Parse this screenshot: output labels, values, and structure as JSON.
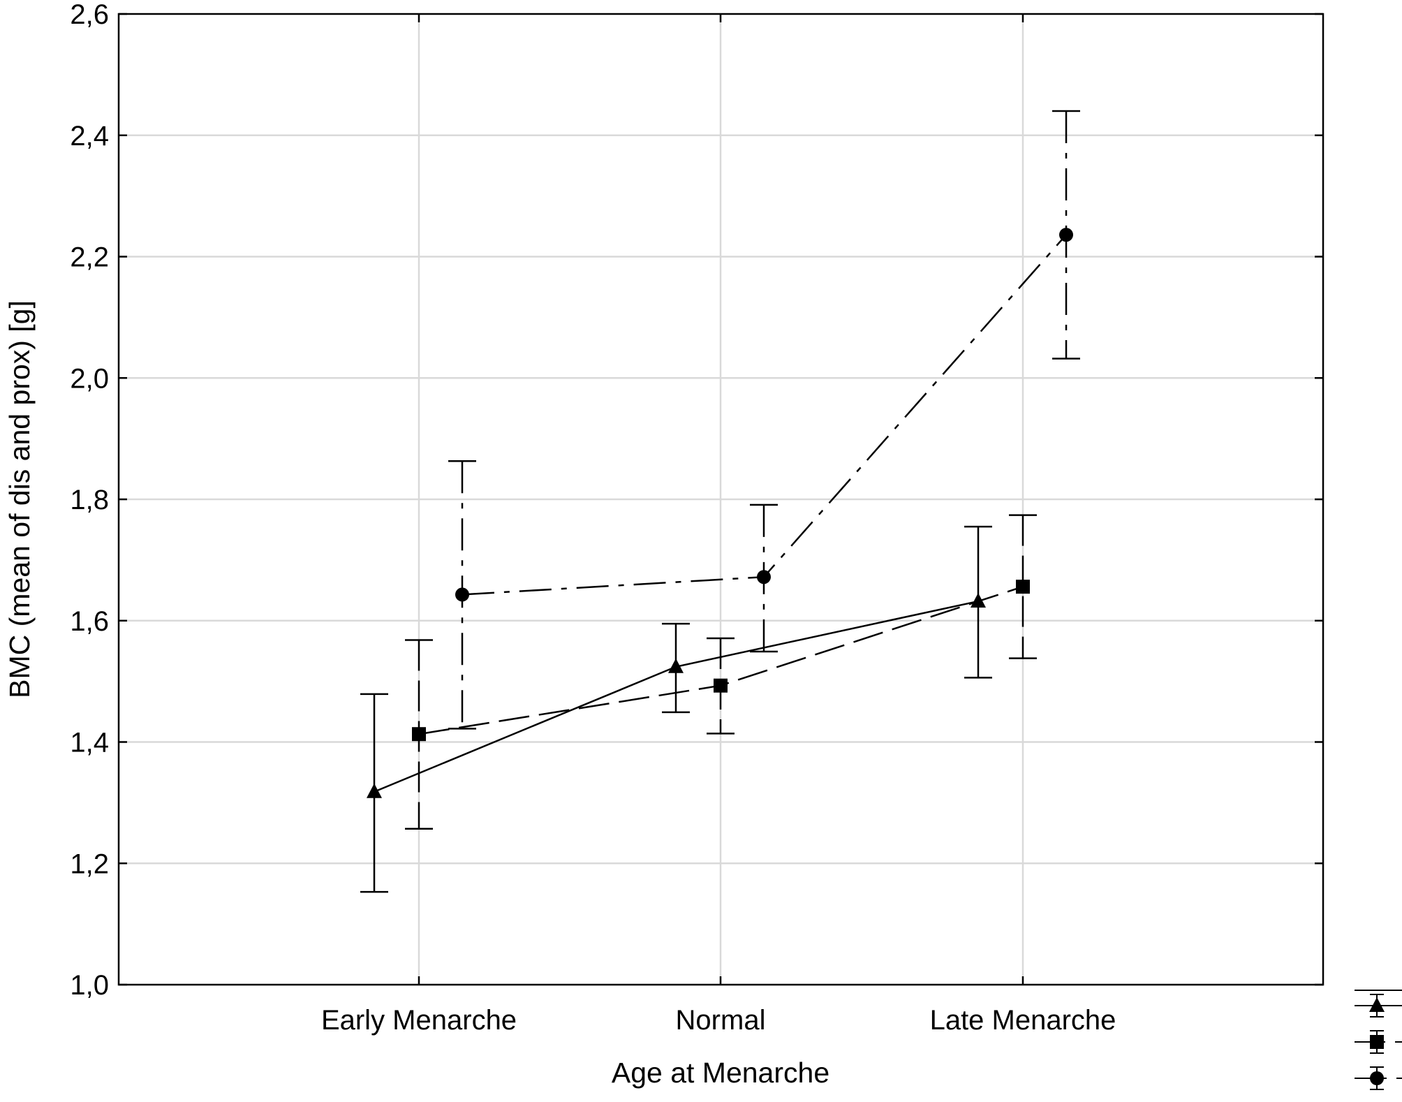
{
  "chart_data": {
    "type": "line",
    "title": "",
    "xlabel": "Age at Menarche",
    "ylabel": "BMC (mean of dis and prox) [g]",
    "categories": [
      "Early Menarche",
      "Normal",
      "Late Menarche"
    ],
    "ylim": [
      1.0,
      2.6
    ],
    "yticks": [
      1.0,
      1.2,
      1.4,
      1.6,
      1.8,
      2.0,
      2.2,
      2.4,
      2.6
    ],
    "ytick_labels": [
      "1,0",
      "1,2",
      "1,4",
      "1,6",
      "1,8",
      "2,0",
      "2,2",
      "2,4",
      "2,6"
    ],
    "grid": true,
    "legend": {
      "placement": "bottom-right",
      "labels_visible": false
    },
    "series": [
      {
        "marker": "triangle",
        "line_style": "solid",
        "values": [
          1.318,
          1.524,
          1.632
        ],
        "ci_low": [
          1.153,
          1.449,
          1.506
        ],
        "ci_high": [
          1.479,
          1.595,
          1.755
        ]
      },
      {
        "marker": "square",
        "line_style": "long-dash",
        "values": [
          1.413,
          1.493,
          1.656
        ],
        "ci_low": [
          1.257,
          1.414,
          1.538
        ],
        "ci_high": [
          1.568,
          1.571,
          1.774
        ]
      },
      {
        "marker": "circle",
        "line_style": "dash-dot",
        "values": [
          1.643,
          1.672,
          2.236
        ],
        "ci_low": [
          1.422,
          1.549,
          2.032
        ],
        "ci_high": [
          1.863,
          1.791,
          2.44
        ]
      }
    ]
  },
  "colors": {
    "ink": "#000000",
    "grid": "#d9d9d9",
    "background": "#ffffff"
  }
}
